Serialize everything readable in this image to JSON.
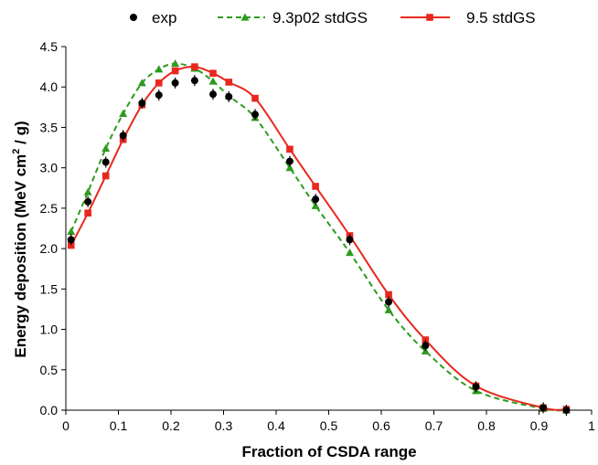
{
  "chart_data": {
    "type": "line",
    "xlabel": "Fraction of CSDA range",
    "ylabel_prefix": "Energy deposition (MeV cm",
    "ylabel_sup": "2",
    "ylabel_suffix": " / g)",
    "xlim": [
      0,
      1
    ],
    "ylim": [
      0,
      4.5
    ],
    "xticks": [
      "0",
      "0.1",
      "0.2",
      "0.3",
      "0.4",
      "0.5",
      "0.6",
      "0.7",
      "0.8",
      "0.9",
      "1"
    ],
    "yticks": [
      "0.0",
      "0.5",
      "1.0",
      "1.5",
      "2.0",
      "2.5",
      "3.0",
      "3.5",
      "4.0",
      "4.5"
    ],
    "legend_position": "top",
    "series": [
      {
        "name": "exp",
        "color": "#000000",
        "marker": "circle",
        "line": "none",
        "error_bars": true,
        "points": [
          [
            0.01,
            2.11
          ],
          [
            0.042,
            2.58
          ],
          [
            0.076,
            3.07
          ],
          [
            0.109,
            3.4
          ],
          [
            0.145,
            3.8
          ],
          [
            0.177,
            3.9
          ],
          [
            0.208,
            4.05
          ],
          [
            0.245,
            4.08
          ],
          [
            0.28,
            3.91
          ],
          [
            0.31,
            3.88
          ],
          [
            0.36,
            3.66
          ],
          [
            0.426,
            3.08
          ],
          [
            0.475,
            2.61
          ],
          [
            0.54,
            2.11
          ],
          [
            0.614,
            1.34
          ],
          [
            0.684,
            0.8
          ],
          [
            0.78,
            0.29
          ],
          [
            0.908,
            0.03
          ],
          [
            0.952,
            0.0
          ]
        ]
      },
      {
        "name": "9.3p02 stdGS",
        "color": "#2e9a1e",
        "marker": "triangle",
        "line": "dashed",
        "points": [
          [
            0.01,
            2.21
          ],
          [
            0.042,
            2.7
          ],
          [
            0.076,
            3.24
          ],
          [
            0.109,
            3.67
          ],
          [
            0.145,
            4.05
          ],
          [
            0.177,
            4.22
          ],
          [
            0.208,
            4.29
          ],
          [
            0.245,
            4.23
          ],
          [
            0.28,
            4.07
          ],
          [
            0.31,
            3.89
          ],
          [
            0.36,
            3.62
          ],
          [
            0.426,
            3.0
          ],
          [
            0.475,
            2.53
          ],
          [
            0.54,
            1.95
          ],
          [
            0.614,
            1.24
          ],
          [
            0.684,
            0.73
          ],
          [
            0.78,
            0.24
          ],
          [
            0.908,
            0.02
          ],
          [
            0.952,
            0.0
          ]
        ]
      },
      {
        "name": "9.5 stdGS",
        "color": "#e8281e",
        "marker": "square",
        "line": "solid",
        "points": [
          [
            0.01,
            2.04
          ],
          [
            0.042,
            2.44
          ],
          [
            0.076,
            2.9
          ],
          [
            0.109,
            3.35
          ],
          [
            0.145,
            3.78
          ],
          [
            0.177,
            4.05
          ],
          [
            0.208,
            4.2
          ],
          [
            0.245,
            4.25
          ],
          [
            0.28,
            4.17
          ],
          [
            0.31,
            4.06
          ],
          [
            0.36,
            3.86
          ],
          [
            0.426,
            3.23
          ],
          [
            0.475,
            2.77
          ],
          [
            0.54,
            2.16
          ],
          [
            0.614,
            1.43
          ],
          [
            0.684,
            0.87
          ],
          [
            0.78,
            0.3
          ],
          [
            0.908,
            0.03
          ],
          [
            0.952,
            0.01
          ]
        ]
      }
    ]
  }
}
